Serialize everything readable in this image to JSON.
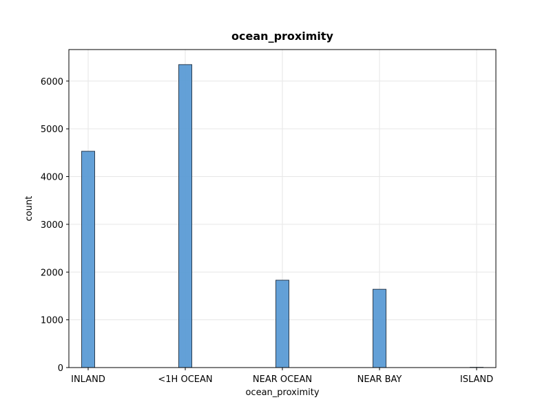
{
  "chart_data": {
    "type": "bar",
    "title": "ocean_proximity",
    "xlabel": "ocean_proximity",
    "ylabel": "count",
    "categories": [
      "INLAND",
      "<1H OCEAN",
      "NEAR OCEAN",
      "NEAR BAY",
      "ISLAND"
    ],
    "values": [
      4530,
      6345,
      1830,
      1640,
      5
    ],
    "ylim": [
      0,
      6660
    ],
    "yticks": [
      0,
      1000,
      2000,
      3000,
      4000,
      5000,
      6000
    ],
    "ytick_labels": [
      "0",
      "1000",
      "2000",
      "3000",
      "4000",
      "5000",
      "6000"
    ],
    "grid": true,
    "bar_color": "#5b9bd5",
    "bar_edge_color": "#2b3d4f",
    "grid_color": "#e6e6e6"
  }
}
